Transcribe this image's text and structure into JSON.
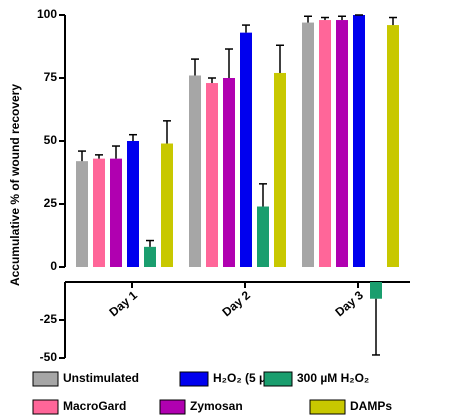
{
  "chart_data": {
    "type": "bar",
    "ylabel": "Accumulative % of wound recovery",
    "categories": [
      "Day 1",
      "Day 2",
      "Day 3"
    ],
    "series": [
      {
        "name": "Unstimulated",
        "color": "#a6a6a6",
        "values": [
          42,
          76,
          97
        ],
        "errors": [
          4,
          6.5,
          2.5
        ]
      },
      {
        "name": "MacroGard",
        "color": "#ff6699",
        "values": [
          43,
          73,
          98
        ],
        "errors": [
          1.5,
          2,
          1
        ]
      },
      {
        "name": "Zymosan",
        "color": "#b000b0",
        "values": [
          43,
          75,
          98
        ],
        "errors": [
          5,
          11.5,
          1.5
        ]
      },
      {
        "name": "H₂O₂ (5 µM)",
        "color": "#0000ee",
        "values": [
          50,
          93,
          100
        ],
        "errors": [
          2.5,
          3,
          0
        ]
      },
      {
        "name": "300 µM H₂O₂",
        "color": "#1a9e6e",
        "values": [
          8,
          24,
          -11
        ],
        "errors": [
          2.5,
          9,
          37
        ]
      },
      {
        "name": "DAMPs",
        "color": "#c8c800",
        "values": [
          49,
          77,
          96
        ],
        "errors": [
          9,
          11,
          3
        ]
      }
    ],
    "ylim": [
      -50,
      100
    ],
    "yticks": [
      -50,
      -25,
      0,
      25,
      50,
      75,
      100
    ]
  }
}
